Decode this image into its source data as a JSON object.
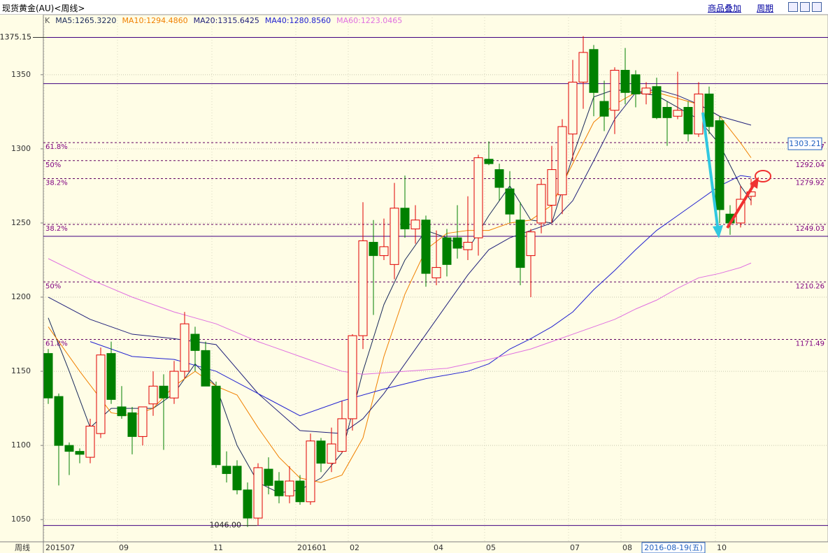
{
  "chart_data": {
    "type": "candlestick",
    "title": "现货黄金(AU)<周线>",
    "toolbar": [
      "商品叠加",
      "周期"
    ],
    "legend_prefix": "K",
    "x_axis_label": "周线",
    "crosshair_date": "2016-08-19(五)",
    "current_price": 1303.21,
    "ylim": [
      1035,
      1390
    ],
    "yticks": [
      1050,
      1100,
      1150,
      1200,
      1250,
      1300,
      1350
    ],
    "grid": true,
    "up_color": "#e00000",
    "down_color": "#008000",
    "categories": [
      "201507",
      null,
      null,
      null,
      null,
      null,
      null,
      "09",
      null,
      null,
      null,
      null,
      null,
      null,
      null,
      null,
      "11",
      null,
      null,
      null,
      null,
      null,
      null,
      null,
      "201601",
      null,
      null,
      null,
      null,
      "02",
      null,
      null,
      null,
      null,
      null,
      null,
      null,
      "04",
      null,
      null,
      null,
      null,
      "05",
      null,
      null,
      null,
      null,
      null,
      null,
      null,
      "07",
      null,
      null,
      null,
      null,
      "08",
      null,
      null,
      null,
      null,
      null,
      null,
      null,
      null,
      "10",
      null,
      null,
      null
    ],
    "open": [
      1162,
      1133,
      1100,
      1096,
      1092,
      1108,
      1162,
      1126,
      1122,
      1106,
      1128,
      1140,
      1132,
      1150,
      1175,
      1164,
      1140,
      1086,
      1086,
      1070,
      1051,
      1084,
      1076,
      1066,
      1076,
      1062,
      1103,
      1088,
      1096,
      1118,
      1174,
      1237,
      1228,
      1222,
      1260,
      1246,
      1252,
      1213,
      1240,
      1240,
      1232,
      1240,
      1293,
      1286,
      1273,
      1252,
      1228,
      1250,
      1262,
      1269,
      1310,
      1345,
      1367,
      1332,
      1326,
      1353,
      1350,
      1337,
      1342,
      1328,
      1322,
      1328,
      1310,
      1337,
      1319,
      1256,
      1250,
      1268
    ],
    "high": [
      1165,
      1135,
      1102,
      1098,
      1118,
      1166,
      1170,
      1140,
      1126,
      1126,
      1150,
      1148,
      1157,
      1190,
      1180,
      1170,
      1143,
      1096,
      1090,
      1075,
      1088,
      1092,
      1082,
      1086,
      1080,
      1108,
      1105,
      1112,
      1130,
      1175,
      1264,
      1252,
      1253,
      1277,
      1282,
      1262,
      1255,
      1245,
      1246,
      1262,
      1268,
      1296,
      1305,
      1290,
      1285,
      1264,
      1246,
      1280,
      1302,
      1320,
      1360,
      1376,
      1370,
      1346,
      1355,
      1368,
      1353,
      1345,
      1348,
      1332,
      1352,
      1332,
      1345,
      1342,
      1322,
      1262,
      1275,
      1280
    ],
    "low": [
      1128,
      1073,
      1080,
      1088,
      1088,
      1105,
      1128,
      1118,
      1094,
      1100,
      1120,
      1097,
      1128,
      1145,
      1150,
      1140,
      1085,
      1075,
      1067,
      1045,
      1046,
      1067,
      1061,
      1061,
      1060,
      1060,
      1082,
      1082,
      1095,
      1110,
      1165,
      1188,
      1225,
      1212,
      1240,
      1236,
      1207,
      1208,
      1214,
      1226,
      1225,
      1228,
      1289,
      1265,
      1250,
      1208,
      1200,
      1243,
      1250,
      1256,
      1292,
      1327,
      1322,
      1312,
      1310,
      1330,
      1328,
      1330,
      1320,
      1302,
      1320,
      1305,
      1308,
      1310,
      1250,
      1242,
      1247,
      1262
    ],
    "close": [
      1132,
      1100,
      1096,
      1094,
      1113,
      1161,
      1131,
      1120,
      1106,
      1126,
      1140,
      1132,
      1150,
      1182,
      1164,
      1140,
      1087,
      1081,
      1070,
      1051,
      1085,
      1073,
      1066,
      1076,
      1062,
      1103,
      1088,
      1101,
      1118,
      1174,
      1238,
      1228,
      1234,
      1260,
      1246,
      1252,
      1216,
      1220,
      1222,
      1233,
      1237,
      1294,
      1290,
      1274,
      1256,
      1220,
      1244,
      1276,
      1286,
      1315,
      1345,
      1365,
      1338,
      1322,
      1353,
      1338,
      1337,
      1341,
      1321,
      1321,
      1326,
      1310,
      1337,
      1315,
      1259,
      1250,
      1266,
      1271
    ],
    "series": [
      {
        "name": "MA5:1265.3220",
        "color": "#1a2a5a",
        "x": [
          0,
          2,
          4,
          6,
          8,
          10,
          12,
          14,
          16,
          18,
          20,
          22,
          24,
          26,
          28,
          30,
          32,
          34,
          36,
          38,
          40,
          42,
          44,
          46,
          48,
          50,
          52,
          54,
          56,
          58,
          60,
          62,
          64,
          66,
          67
        ],
        "values": [
          1186,
          1150,
          1112,
          1125,
          1125,
          1125,
          1135,
          1155,
          1140,
          1100,
          1075,
          1068,
          1070,
          1078,
          1095,
          1150,
          1195,
          1225,
          1245,
          1240,
          1232,
          1255,
          1275,
          1252,
          1250,
          1295,
          1335,
          1340,
          1338,
          1336,
          1328,
          1320,
          1303,
          1275,
          1265
        ]
      },
      {
        "name": "MA10:1294.4860",
        "color": "#f08000",
        "x": [
          0,
          3,
          6,
          8,
          10,
          12,
          14,
          16,
          18,
          20,
          22,
          24,
          26,
          28,
          30,
          32,
          34,
          36,
          38,
          40,
          42,
          44,
          46,
          48,
          50,
          52,
          54,
          56,
          58,
          60,
          62,
          64,
          66,
          67
        ],
        "values": [
          1180,
          1150,
          1122,
          1120,
          1125,
          1140,
          1150,
          1140,
          1134,
          1112,
          1092,
          1078,
          1075,
          1080,
          1105,
          1160,
          1202,
          1232,
          1243,
          1245,
          1245,
          1250,
          1252,
          1262,
          1290,
          1318,
          1330,
          1338,
          1338,
          1334,
          1330,
          1322,
          1304,
          1294
        ]
      },
      {
        "name": "MA20:1315.6425",
        "color": "#20207a",
        "x": [
          0,
          4,
          8,
          12,
          16,
          20,
          24,
          28,
          30,
          32,
          36,
          40,
          42,
          44,
          46,
          48,
          50,
          52,
          54,
          56,
          58,
          60,
          62,
          64,
          66,
          67
        ],
        "values": [
          1200,
          1185,
          1175,
          1172,
          1168,
          1135,
          1110,
          1108,
          1118,
          1135,
          1175,
          1215,
          1232,
          1240,
          1245,
          1250,
          1265,
          1292,
          1320,
          1338,
          1340,
          1336,
          1330,
          1322,
          1318,
          1316
        ]
      },
      {
        "name": "MA40:1280.8560",
        "color": "#2020d0",
        "x": [
          4,
          8,
          12,
          16,
          20,
          24,
          28,
          32,
          36,
          40,
          42,
          44,
          46,
          48,
          50,
          52,
          54,
          56,
          58,
          60,
          62,
          64,
          66,
          67
        ],
        "values": [
          1170,
          1160,
          1158,
          1150,
          1135,
          1120,
          1130,
          1138,
          1145,
          1150,
          1155,
          1165,
          1172,
          1180,
          1190,
          1205,
          1218,
          1232,
          1245,
          1255,
          1265,
          1275,
          1282,
          1281
        ]
      },
      {
        "name": "MA60:1223.0465",
        "color": "#e070e0",
        "x": [
          0,
          4,
          8,
          12,
          16,
          20,
          24,
          28,
          30,
          34,
          38,
          42,
          46,
          48,
          50,
          52,
          54,
          56,
          58,
          60,
          62,
          64,
          66,
          67
        ],
        "values": [
          1226,
          1212,
          1200,
          1190,
          1182,
          1170,
          1160,
          1150,
          1148,
          1150,
          1152,
          1158,
          1165,
          1170,
          1175,
          1180,
          1185,
          1192,
          1198,
          1206,
          1213,
          1216,
          1220,
          1223
        ]
      }
    ],
    "levels": [
      {
        "value": 1304.17,
        "ratio": "61.8%"
      },
      {
        "value": 1292.04,
        "ratio": "50%"
      },
      {
        "value": 1279.92,
        "ratio": "38.2%"
      },
      {
        "value": 1249.03,
        "ratio": "38.2%"
      },
      {
        "value": 1210.26,
        "ratio": "50%"
      },
      {
        "value": 1171.49,
        "ratio": "61.8%"
      }
    ],
    "solid_levels": [
      1375.15,
      1344,
      1241,
      1046
    ],
    "extremes": [
      {
        "value": 1375.15,
        "label": "1375.15"
      },
      {
        "value": 1046,
        "label": "1046.00"
      }
    ]
  }
}
